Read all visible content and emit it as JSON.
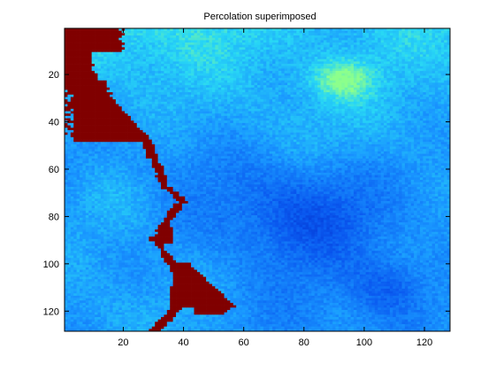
{
  "chart_data": {
    "type": "heatmap",
    "title": "Percolation superimposed",
    "xlabel": "",
    "ylabel": "",
    "xlim": [
      0.5,
      128.5
    ],
    "ylim": [
      0.5,
      128.5
    ],
    "y_axis_direction": "reversed",
    "x_ticks": [
      20,
      40,
      60,
      80,
      100,
      120
    ],
    "y_ticks": [
      20,
      40,
      60,
      80,
      100,
      120
    ],
    "grid_size": [
      128,
      128
    ],
    "colormap": "jet",
    "colors": {
      "field_low": "#0a2fd0",
      "field_mid": "#1e8cff",
      "field_high": "#2ee6f0",
      "field_peak": "#7dff9a",
      "percolation_cluster": "#800000"
    },
    "percolation_cluster_regions": [
      {
        "name": "top-left-wedge",
        "x_range": [
          1,
          28
        ],
        "y_range": [
          1,
          48
        ]
      },
      {
        "name": "thin-path",
        "x_range": [
          24,
          42
        ],
        "y_range": [
          40,
          104
        ]
      },
      {
        "name": "bottom-wedge",
        "x_range": [
          30,
          57
        ],
        "y_range": [
          100,
          128
        ]
      }
    ],
    "bright_spot_center": [
      93,
      22
    ]
  }
}
